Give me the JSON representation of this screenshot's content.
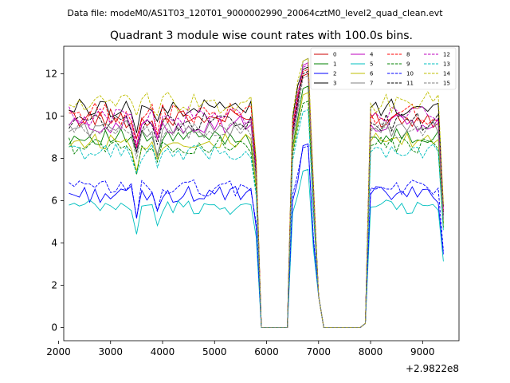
{
  "header": {
    "suptitle": "Data file: modeM0/AS1T03_120T01_9000002990_20064cztM0_level2_quad_clean.evt"
  },
  "chart_data": {
    "type": "line",
    "title": "Quadrant 3 module wise count rates with 100.0s bins.",
    "xlabel": "",
    "ylabel": "",
    "offset_text": "+2.9822e8",
    "xlim": [
      2100,
      9700
    ],
    "ylim": [
      -0.62,
      13.3
    ],
    "xticks": [
      2000,
      3000,
      4000,
      5000,
      6000,
      7000,
      8000,
      9000
    ],
    "xtick_labels": [
      "2000",
      "3000",
      "4000",
      "5000",
      "6000",
      "7000",
      "8000",
      "9000"
    ],
    "yticks": [
      0,
      2,
      4,
      6,
      8,
      10,
      12
    ],
    "ytick_labels": [
      "0",
      "2",
      "4",
      "6",
      "8",
      "10",
      "12"
    ],
    "legend_position": "top-right",
    "segments": [
      {
        "start": 2200,
        "end": 5900
      },
      {
        "start": 6400,
        "end": 7000
      },
      {
        "start": 7900,
        "end": 9400
      }
    ],
    "gap_value": 0,
    "series": [
      {
        "name": "0",
        "color": "#cc0000",
        "dash": "solid",
        "base": 9.9,
        "spread": 0.45,
        "peak": 11.9
      },
      {
        "name": "1",
        "color": "#008000",
        "dash": "solid",
        "base": 9.0,
        "spread": 0.4,
        "peak": 11.3
      },
      {
        "name": "2",
        "color": "#0000ff",
        "dash": "solid",
        "base": 6.3,
        "spread": 0.4,
        "peak": 8.6
      },
      {
        "name": "3",
        "color": "#000000",
        "dash": "solid",
        "base": 10.4,
        "spread": 0.45,
        "peak": 12.2
      },
      {
        "name": "4",
        "color": "#bf00bf",
        "dash": "solid",
        "base": 9.6,
        "spread": 0.45,
        "peak": 12.4
      },
      {
        "name": "5",
        "color": "#00bfbf",
        "dash": "solid",
        "base": 5.7,
        "spread": 0.35,
        "peak": 7.4
      },
      {
        "name": "6",
        "color": "#bfbf00",
        "dash": "solid",
        "base": 8.8,
        "spread": 0.4,
        "peak": 11.0
      },
      {
        "name": "7",
        "color": "#808080",
        "dash": "solid",
        "base": 9.4,
        "spread": 0.4,
        "peak": 12.6
      },
      {
        "name": "8",
        "color": "#ff0000",
        "dash": "dashed",
        "base": 10.1,
        "spread": 0.55,
        "peak": 12.1
      },
      {
        "name": "9",
        "color": "#008000",
        "dash": "dashed",
        "base": 8.6,
        "spread": 0.4,
        "peak": 10.6
      },
      {
        "name": "10",
        "color": "#0000ff",
        "dash": "dashed",
        "base": 6.6,
        "spread": 0.4,
        "peak": 8.5
      },
      {
        "name": "11",
        "color": "#000000",
        "dash": "dashed",
        "base": 9.7,
        "spread": 0.45,
        "peak": 12.0
      },
      {
        "name": "12",
        "color": "#bf00bf",
        "dash": "dashed",
        "base": 10.0,
        "spread": 0.45,
        "peak": 12.3
      },
      {
        "name": "13",
        "color": "#00bfbf",
        "dash": "dashed",
        "base": 8.3,
        "spread": 0.4,
        "peak": 10.2
      },
      {
        "name": "14",
        "color": "#bfbf00",
        "dash": "dashed",
        "base": 10.6,
        "spread": 0.55,
        "peak": 12.6
      },
      {
        "name": "15",
        "color": "#808080",
        "dash": "dashed",
        "base": 9.3,
        "spread": 0.4,
        "peak": 11.8
      }
    ]
  }
}
